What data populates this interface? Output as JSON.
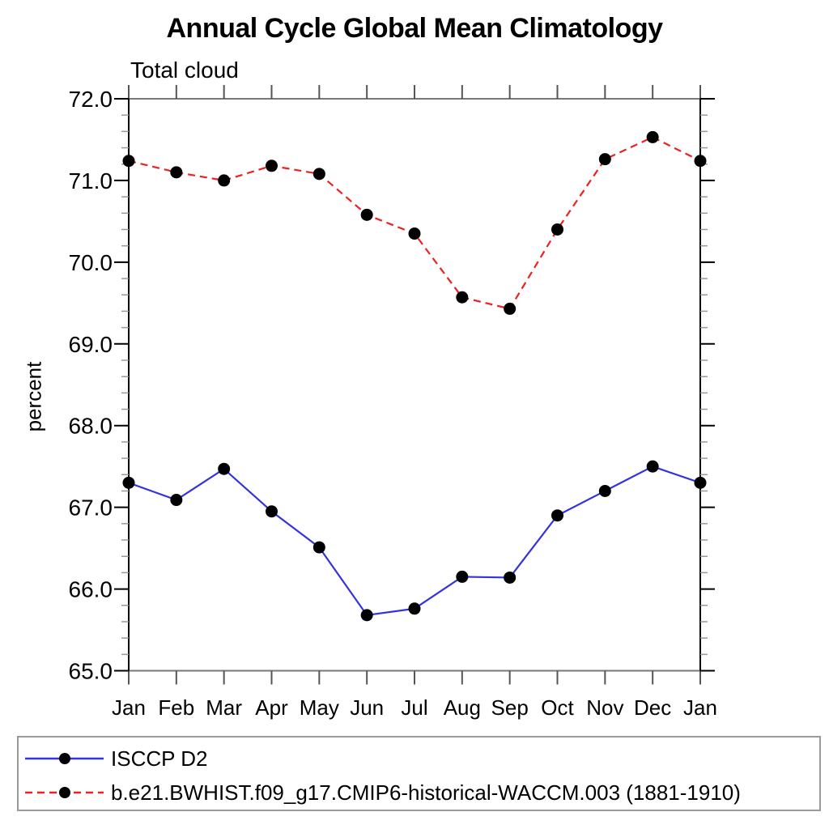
{
  "chart": {
    "title": "Annual Cycle Global Mean Climatology",
    "subtitle": "Total cloud",
    "ylabel": "percent"
  },
  "chart_data": {
    "type": "line",
    "title": "Annual Cycle Global Mean Climatology",
    "subtitle": "Total cloud",
    "xlabel": "",
    "ylabel": "percent",
    "categories": [
      "Jan",
      "Feb",
      "Mar",
      "Apr",
      "May",
      "Jun",
      "Jul",
      "Aug",
      "Sep",
      "Oct",
      "Nov",
      "Dec",
      "Jan"
    ],
    "ylim": [
      65.0,
      72.0
    ],
    "y_major_step": 1.0,
    "y_minor_step": 0.2,
    "y_tick_labels": [
      "65.0",
      "66.0",
      "67.0",
      "68.0",
      "69.0",
      "70.0",
      "71.0",
      "72.0"
    ],
    "grid": false,
    "legend_position": "bottom",
    "series": [
      {
        "name": "ISCCP D2",
        "color": "#3232e0",
        "line_style": "solid",
        "marker": "circle",
        "marker_color": "#000000",
        "values": [
          67.3,
          67.09,
          67.47,
          66.95,
          66.51,
          65.68,
          65.76,
          66.15,
          66.14,
          66.9,
          67.2,
          67.5,
          67.3
        ]
      },
      {
        "name": "b.e21.BWHIST.f09_g17.CMIP6-historical-WACCM.003 (1881-1910)",
        "color": "#ee2020",
        "line_style": "dashed",
        "marker": "circle",
        "marker_color": "#000000",
        "values": [
          71.24,
          71.1,
          71.0,
          71.18,
          71.08,
          70.58,
          70.35,
          69.57,
          69.43,
          70.4,
          71.26,
          71.53,
          71.24
        ]
      }
    ]
  },
  "legend": {
    "items": [
      {
        "label": "ISCCP D2",
        "color": "#3232e0",
        "style": "solid"
      },
      {
        "label": "b.e21.BWHIST.f09_g17.CMIP6-historical-WACCM.003 (1881-1910)",
        "color": "#ee2020",
        "style": "dashed"
      }
    ]
  }
}
